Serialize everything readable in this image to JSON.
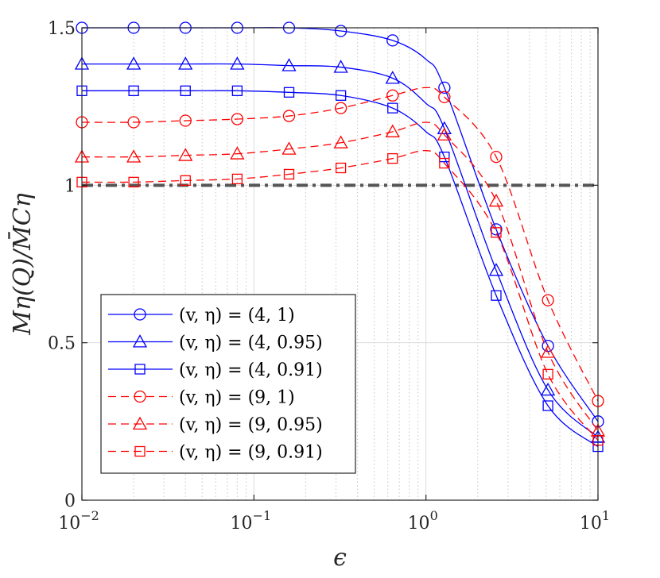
{
  "chart_data": {
    "type": "line",
    "xscale": "log",
    "xlim": [
      0.01,
      10
    ],
    "ylim": [
      0,
      1.5
    ],
    "xlabel": "ϵ",
    "ylabel": "Mη(Q)/M̄Cη",
    "grid": true,
    "minor_grid_x": true,
    "legend_position": "bottom-left",
    "x_ticks": [
      {
        "value": 0.01,
        "base": "10",
        "exp": "−2"
      },
      {
        "value": 0.1,
        "base": "10",
        "exp": "−1"
      },
      {
        "value": 1,
        "base": "10",
        "exp": "0"
      },
      {
        "value": 10,
        "base": "10",
        "exp": "1"
      }
    ],
    "y_ticks": [
      {
        "value": 0,
        "label": "0"
      },
      {
        "value": 0.5,
        "label": "0.5"
      },
      {
        "value": 1,
        "label": "1"
      },
      {
        "value": 1.5,
        "label": "1.5"
      }
    ],
    "reference_line": {
      "y": 1.0,
      "color": "#555555",
      "style": "dash-dot"
    },
    "series": [
      {
        "name": "(v, η) = (4, 1)",
        "color": "#0000ff",
        "dash": "solid",
        "marker": "circle",
        "x": [
          0.01,
          0.02,
          0.04,
          0.08,
          0.16,
          0.32,
          0.64,
          1.0,
          1.28,
          2.56,
          5.12,
          10
        ],
        "y": [
          1.5,
          1.5,
          1.5,
          1.5,
          1.5,
          1.49,
          1.46,
          1.4,
          1.31,
          0.86,
          0.49,
          0.25
        ],
        "marker_x": [
          0.01,
          0.02,
          0.04,
          0.08,
          0.16,
          0.32,
          0.64,
          1.28,
          2.56,
          5.12,
          10
        ],
        "marker_y": [
          1.5,
          1.5,
          1.5,
          1.5,
          1.5,
          1.49,
          1.46,
          1.31,
          0.86,
          0.49,
          0.25
        ]
      },
      {
        "name": "(v, η) = (4, 0.95)",
        "color": "#0000ff",
        "dash": "solid",
        "marker": "triangle",
        "x": [
          0.01,
          0.02,
          0.04,
          0.08,
          0.16,
          0.32,
          0.64,
          1.0,
          1.28,
          2.56,
          5.12,
          10
        ],
        "y": [
          1.385,
          1.385,
          1.385,
          1.385,
          1.38,
          1.375,
          1.34,
          1.26,
          1.18,
          0.73,
          0.35,
          0.2
        ],
        "marker_x": [
          0.01,
          0.02,
          0.04,
          0.08,
          0.16,
          0.32,
          0.64,
          1.28,
          2.56,
          5.12,
          10
        ],
        "marker_y": [
          1.385,
          1.385,
          1.385,
          1.385,
          1.38,
          1.375,
          1.34,
          1.18,
          0.73,
          0.35,
          0.2
        ]
      },
      {
        "name": "(v, η) = (4, 0.91)",
        "color": "#0000ff",
        "dash": "solid",
        "marker": "square",
        "x": [
          0.01,
          0.02,
          0.04,
          0.08,
          0.16,
          0.32,
          0.64,
          1.0,
          1.28,
          2.56,
          5.12,
          10
        ],
        "y": [
          1.3,
          1.3,
          1.3,
          1.3,
          1.295,
          1.285,
          1.245,
          1.17,
          1.09,
          0.65,
          0.3,
          0.17
        ],
        "marker_x": [
          0.01,
          0.02,
          0.04,
          0.08,
          0.16,
          0.32,
          0.64,
          1.28,
          2.56,
          5.12,
          10
        ],
        "marker_y": [
          1.3,
          1.3,
          1.3,
          1.3,
          1.295,
          1.285,
          1.245,
          1.09,
          0.65,
          0.3,
          0.17
        ]
      },
      {
        "name": "(v, η) = (9, 1)",
        "color": "#ff0000",
        "dash": "dashed",
        "marker": "circle",
        "x": [
          0.01,
          0.02,
          0.04,
          0.08,
          0.16,
          0.32,
          0.64,
          1.0,
          1.28,
          2.56,
          5.12,
          10
        ],
        "y": [
          1.2,
          1.2,
          1.205,
          1.21,
          1.22,
          1.245,
          1.285,
          1.31,
          1.28,
          1.09,
          0.635,
          0.315
        ],
        "marker_x": [
          0.01,
          0.02,
          0.04,
          0.08,
          0.16,
          0.32,
          0.64,
          1.28,
          2.56,
          5.12,
          10
        ],
        "marker_y": [
          1.2,
          1.2,
          1.205,
          1.21,
          1.22,
          1.245,
          1.285,
          1.28,
          1.09,
          0.635,
          0.315
        ]
      },
      {
        "name": "(v, η) = (9, 0.95)",
        "color": "#ff0000",
        "dash": "dashed",
        "marker": "triangle",
        "x": [
          0.01,
          0.02,
          0.04,
          0.08,
          0.16,
          0.32,
          0.64,
          1.0,
          1.28,
          2.56,
          5.12,
          10
        ],
        "y": [
          1.09,
          1.09,
          1.095,
          1.1,
          1.115,
          1.135,
          1.17,
          1.2,
          1.16,
          0.95,
          0.47,
          0.22
        ],
        "marker_x": [
          0.01,
          0.02,
          0.04,
          0.08,
          0.16,
          0.32,
          0.64,
          1.28,
          2.56,
          5.12,
          10
        ],
        "marker_y": [
          1.09,
          1.09,
          1.095,
          1.1,
          1.115,
          1.135,
          1.17,
          1.16,
          0.95,
          0.47,
          0.22
        ]
      },
      {
        "name": "(v, η) = (9, 0.91)",
        "color": "#ff0000",
        "dash": "dashed",
        "marker": "square",
        "x": [
          0.01,
          0.02,
          0.04,
          0.08,
          0.16,
          0.32,
          0.64,
          1.0,
          1.28,
          2.56,
          5.12,
          10
        ],
        "y": [
          1.01,
          1.01,
          1.015,
          1.02,
          1.035,
          1.055,
          1.085,
          1.11,
          1.07,
          0.85,
          0.4,
          0.19
        ],
        "marker_x": [
          0.01,
          0.02,
          0.04,
          0.08,
          0.16,
          0.32,
          0.64,
          1.28,
          2.56,
          5.12,
          10
        ],
        "marker_y": [
          1.01,
          1.01,
          1.015,
          1.02,
          1.035,
          1.055,
          1.085,
          1.07,
          0.85,
          0.4,
          0.19
        ]
      }
    ]
  }
}
